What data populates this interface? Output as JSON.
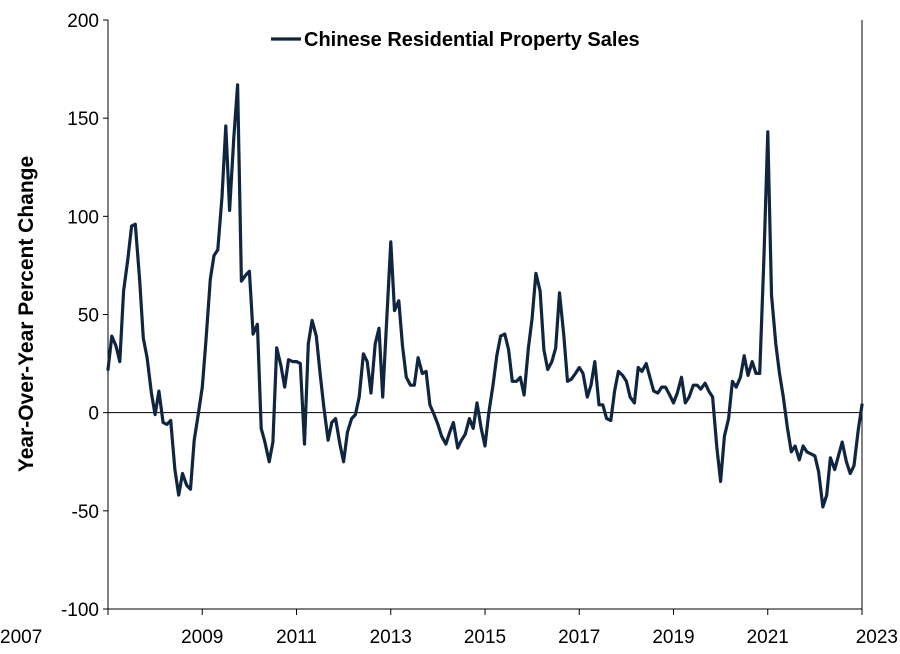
{
  "chart_data": {
    "type": "line",
    "title": "",
    "xlabel": "",
    "ylabel": "Year-Over-Year Percent Change",
    "xlim": [
      2007,
      2023
    ],
    "ylim": [
      -100,
      200
    ],
    "x_ticks": [
      "2007",
      "2009",
      "2011",
      "2013",
      "2015",
      "2017",
      "2019",
      "2021",
      "2023"
    ],
    "y_ticks": [
      "200",
      "150",
      "100",
      "50",
      "0",
      "-50",
      "-100"
    ],
    "grid": false,
    "legend": {
      "position": "top-center"
    },
    "zero_line": true,
    "line_color": "#0f2540",
    "series": [
      {
        "name": "Chinese Residential Property Sales",
        "points": [
          [
            2007.0,
            22
          ],
          [
            2007.08,
            39
          ],
          [
            2007.17,
            34
          ],
          [
            2007.25,
            26
          ],
          [
            2007.33,
            62
          ],
          [
            2007.42,
            78
          ],
          [
            2007.5,
            95
          ],
          [
            2007.58,
            96
          ],
          [
            2007.67,
            68
          ],
          [
            2007.75,
            38
          ],
          [
            2007.83,
            28
          ],
          [
            2007.92,
            10
          ],
          [
            2008.0,
            -1
          ],
          [
            2008.08,
            11
          ],
          [
            2008.17,
            -5
          ],
          [
            2008.25,
            -6
          ],
          [
            2008.33,
            -4
          ],
          [
            2008.42,
            -29
          ],
          [
            2008.5,
            -42
          ],
          [
            2008.58,
            -31
          ],
          [
            2008.67,
            -37
          ],
          [
            2008.75,
            -39
          ],
          [
            2008.83,
            -14
          ],
          [
            2008.92,
            0
          ],
          [
            2009.0,
            13
          ],
          [
            2009.08,
            37
          ],
          [
            2009.17,
            68
          ],
          [
            2009.25,
            80
          ],
          [
            2009.33,
            83
          ],
          [
            2009.42,
            110
          ],
          [
            2009.5,
            146
          ],
          [
            2009.58,
            103
          ],
          [
            2009.67,
            140
          ],
          [
            2009.75,
            167
          ],
          [
            2009.83,
            67
          ],
          [
            2009.92,
            70
          ],
          [
            2010.0,
            72
          ],
          [
            2010.08,
            40
          ],
          [
            2010.17,
            45
          ],
          [
            2010.25,
            -8
          ],
          [
            2010.33,
            -15
          ],
          [
            2010.42,
            -25
          ],
          [
            2010.5,
            -15
          ],
          [
            2010.58,
            33
          ],
          [
            2010.67,
            24
          ],
          [
            2010.75,
            13
          ],
          [
            2010.83,
            27
          ],
          [
            2010.92,
            26
          ],
          [
            2011.0,
            26
          ],
          [
            2011.08,
            25
          ],
          [
            2011.17,
            -16
          ],
          [
            2011.25,
            35
          ],
          [
            2011.33,
            47
          ],
          [
            2011.42,
            39
          ],
          [
            2011.5,
            20
          ],
          [
            2011.58,
            3
          ],
          [
            2011.67,
            -14
          ],
          [
            2011.75,
            -5
          ],
          [
            2011.83,
            -3
          ],
          [
            2011.92,
            -16
          ],
          [
            2012.0,
            -25
          ],
          [
            2012.08,
            -10
          ],
          [
            2012.17,
            -3
          ],
          [
            2012.25,
            -1
          ],
          [
            2012.33,
            8
          ],
          [
            2012.42,
            30
          ],
          [
            2012.5,
            26
          ],
          [
            2012.58,
            10
          ],
          [
            2012.67,
            35
          ],
          [
            2012.75,
            43
          ],
          [
            2012.83,
            8
          ],
          [
            2012.92,
            50
          ],
          [
            2013.0,
            87
          ],
          [
            2013.08,
            52
          ],
          [
            2013.17,
            57
          ],
          [
            2013.25,
            34
          ],
          [
            2013.33,
            18
          ],
          [
            2013.42,
            14
          ],
          [
            2013.5,
            14
          ],
          [
            2013.58,
            28
          ],
          [
            2013.67,
            20
          ],
          [
            2013.75,
            21
          ],
          [
            2013.83,
            4
          ],
          [
            2013.92,
            -1
          ],
          [
            2014.0,
            -6
          ],
          [
            2014.08,
            -12
          ],
          [
            2014.17,
            -16
          ],
          [
            2014.25,
            -10
          ],
          [
            2014.33,
            -5
          ],
          [
            2014.42,
            -18
          ],
          [
            2014.5,
            -14
          ],
          [
            2014.58,
            -11
          ],
          [
            2014.67,
            -3
          ],
          [
            2014.75,
            -8
          ],
          [
            2014.83,
            5
          ],
          [
            2014.92,
            -8
          ],
          [
            2015.0,
            -17
          ],
          [
            2015.08,
            0
          ],
          [
            2015.17,
            14
          ],
          [
            2015.25,
            29
          ],
          [
            2015.33,
            39
          ],
          [
            2015.42,
            40
          ],
          [
            2015.5,
            32
          ],
          [
            2015.58,
            16
          ],
          [
            2015.67,
            16
          ],
          [
            2015.75,
            18
          ],
          [
            2015.83,
            9
          ],
          [
            2015.92,
            33
          ],
          [
            2016.0,
            48
          ],
          [
            2016.08,
            71
          ],
          [
            2016.17,
            62
          ],
          [
            2016.25,
            32
          ],
          [
            2016.33,
            22
          ],
          [
            2016.42,
            26
          ],
          [
            2016.5,
            33
          ],
          [
            2016.58,
            61
          ],
          [
            2016.67,
            40
          ],
          [
            2016.75,
            16
          ],
          [
            2016.83,
            17
          ],
          [
            2016.92,
            20
          ],
          [
            2017.0,
            23
          ],
          [
            2017.08,
            20
          ],
          [
            2017.17,
            8
          ],
          [
            2017.25,
            14
          ],
          [
            2017.33,
            26
          ],
          [
            2017.42,
            4
          ],
          [
            2017.5,
            4
          ],
          [
            2017.58,
            -3
          ],
          [
            2017.67,
            -4
          ],
          [
            2017.75,
            11
          ],
          [
            2017.83,
            21
          ],
          [
            2017.92,
            19
          ],
          [
            2018.0,
            16
          ],
          [
            2018.08,
            8
          ],
          [
            2018.17,
            5
          ],
          [
            2018.25,
            23
          ],
          [
            2018.33,
            21
          ],
          [
            2018.42,
            25
          ],
          [
            2018.5,
            18
          ],
          [
            2018.58,
            11
          ],
          [
            2018.67,
            10
          ],
          [
            2018.75,
            13
          ],
          [
            2018.83,
            13
          ],
          [
            2018.92,
            9
          ],
          [
            2019.0,
            5
          ],
          [
            2019.08,
            10
          ],
          [
            2019.17,
            18
          ],
          [
            2019.25,
            5
          ],
          [
            2019.33,
            8
          ],
          [
            2019.42,
            14
          ],
          [
            2019.5,
            14
          ],
          [
            2019.58,
            12
          ],
          [
            2019.67,
            15
          ],
          [
            2019.75,
            11
          ],
          [
            2019.83,
            8
          ],
          [
            2019.92,
            -18
          ],
          [
            2020.0,
            -35
          ],
          [
            2020.08,
            -12
          ],
          [
            2020.17,
            -3
          ],
          [
            2020.25,
            16
          ],
          [
            2020.33,
            13
          ],
          [
            2020.42,
            18
          ],
          [
            2020.5,
            29
          ],
          [
            2020.58,
            19
          ],
          [
            2020.67,
            26
          ],
          [
            2020.75,
            20
          ],
          [
            2020.83,
            20
          ],
          [
            2020.92,
            80
          ],
          [
            2021.0,
            143
          ],
          [
            2021.08,
            60
          ],
          [
            2021.17,
            35
          ],
          [
            2021.25,
            20
          ],
          [
            2021.33,
            8
          ],
          [
            2021.42,
            -8
          ],
          [
            2021.5,
            -20
          ],
          [
            2021.58,
            -17
          ],
          [
            2021.67,
            -24
          ],
          [
            2021.75,
            -17
          ],
          [
            2021.83,
            -20
          ],
          [
            2021.92,
            -21
          ],
          [
            2022.0,
            -22
          ],
          [
            2022.08,
            -30
          ],
          [
            2022.17,
            -48
          ],
          [
            2022.25,
            -42
          ],
          [
            2022.33,
            -23
          ],
          [
            2022.42,
            -29
          ],
          [
            2022.5,
            -22
          ],
          [
            2022.58,
            -15
          ],
          [
            2022.67,
            -25
          ],
          [
            2022.75,
            -31
          ],
          [
            2022.83,
            -27
          ],
          [
            2022.92,
            -9
          ],
          [
            2023.0,
            4
          ]
        ]
      }
    ]
  }
}
